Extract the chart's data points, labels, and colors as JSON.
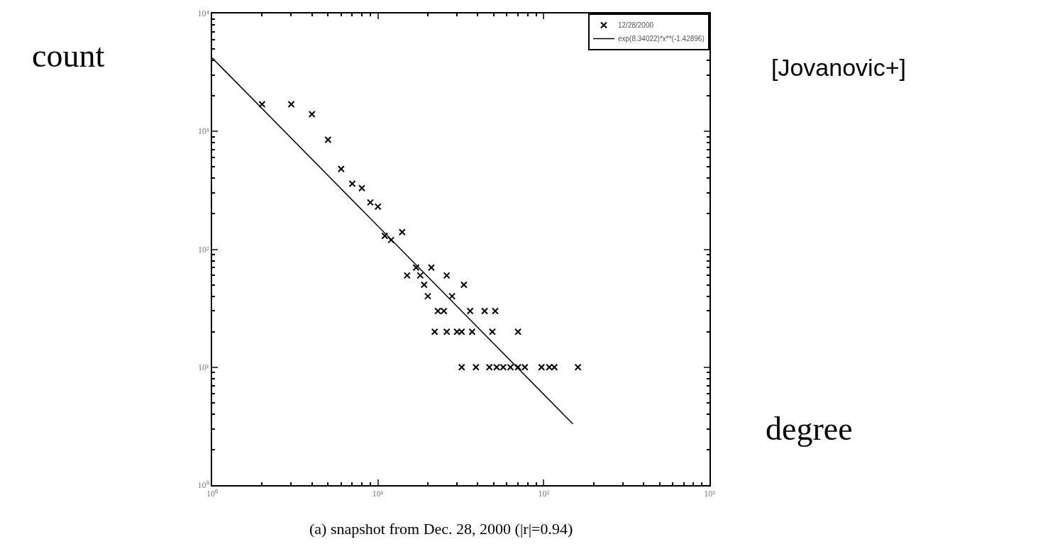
{
  "chart_data": {
    "type": "scatter",
    "annotations": [
      "count",
      "[Jovanovic+]",
      "degree",
      "(a) snapshot from Dec. 28, 2000 (|r|=0.94)"
    ],
    "series": [
      {
        "name": "12/28/2000",
        "color": "#000000",
        "marker": "cross",
        "x": [
          2,
          3,
          4,
          5,
          6,
          7,
          8,
          9,
          10,
          11,
          12,
          14,
          17,
          15,
          18,
          19,
          20,
          21,
          26,
          33,
          28,
          23,
          25,
          36,
          44,
          51,
          22,
          26,
          30,
          32,
          37,
          49,
          70,
          32,
          39,
          47,
          52,
          57,
          63,
          70,
          77,
          97,
          108,
          116,
          161
        ],
        "values": [
          1700,
          1700,
          1400,
          850,
          480,
          360,
          330,
          250,
          230,
          130,
          120,
          140,
          70,
          60,
          60,
          50,
          40,
          70,
          60,
          50,
          40,
          30,
          30,
          30,
          30,
          30,
          20,
          20,
          20,
          20,
          20,
          20,
          20,
          10,
          10,
          10,
          10,
          10,
          10,
          10,
          10,
          10,
          10,
          10,
          10
        ]
      },
      {
        "name": "exp(8.34022)*x**(-1.42896)",
        "type": "line",
        "color": "#000000",
        "line_style": "solid",
        "marker": "none",
        "x": [
          1,
          150
        ],
        "values": [
          4200,
          3.3
        ]
      }
    ],
    "log": "xy",
    "xlim": [
      1,
      1000
    ],
    "ylim": [
      1,
      10000
    ],
    "xticks": [
      {
        "value": 1,
        "label": "10⁰"
      },
      {
        "value": 10,
        "label": "10¹"
      },
      {
        "value": 100,
        "label": "10²"
      },
      {
        "value": 1000,
        "label": "10³"
      }
    ],
    "yticks": [
      {
        "value": 1,
        "label": "10⁰"
      },
      {
        "value": 10,
        "label": "10¹"
      },
      {
        "value": 100,
        "label": "10²"
      },
      {
        "value": 1000,
        "label": "10³"
      },
      {
        "value": 10000,
        "label": "10⁴"
      }
    ],
    "legend": "top right"
  }
}
